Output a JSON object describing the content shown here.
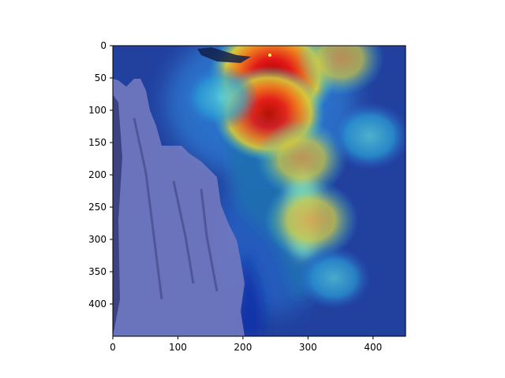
{
  "chart_data": {
    "type": "heatmap",
    "title": "",
    "xlabel": "",
    "ylabel": "",
    "xlim": [
      0,
      450
    ],
    "ylim": [
      450,
      0
    ],
    "y_axis_inverted": true,
    "x_ticks": [
      0,
      100,
      200,
      300,
      400
    ],
    "y_ticks": [
      0,
      50,
      100,
      150,
      200,
      250,
      300,
      350,
      400
    ],
    "grid": false,
    "legend": "none",
    "colormap": "jet",
    "overlay_on": "photograph of a woodpecker on a tree trunk",
    "hotspots": [
      {
        "x": 245,
        "y": 45,
        "intensity": 1.0
      },
      {
        "x": 240,
        "y": 105,
        "intensity": 0.8
      },
      {
        "x": 305,
        "y": 270,
        "intensity": 0.55
      },
      {
        "x": 290,
        "y": 175,
        "intensity": 0.5
      },
      {
        "x": 395,
        "y": 140,
        "intensity": 0.35
      },
      {
        "x": 350,
        "y": 20,
        "intensity": 0.45
      },
      {
        "x": 165,
        "y": 80,
        "intensity": 0.3
      },
      {
        "x": 340,
        "y": 360,
        "intensity": 0.25
      }
    ],
    "colors": {
      "background": "#1e3a9c",
      "deep_blue": "#0a1e8c",
      "rock": "#6f78c0",
      "hot_red": "#d61010",
      "orange": "#e07820",
      "yellow": "#d8c43a",
      "cyan": "#35c0d8"
    }
  }
}
